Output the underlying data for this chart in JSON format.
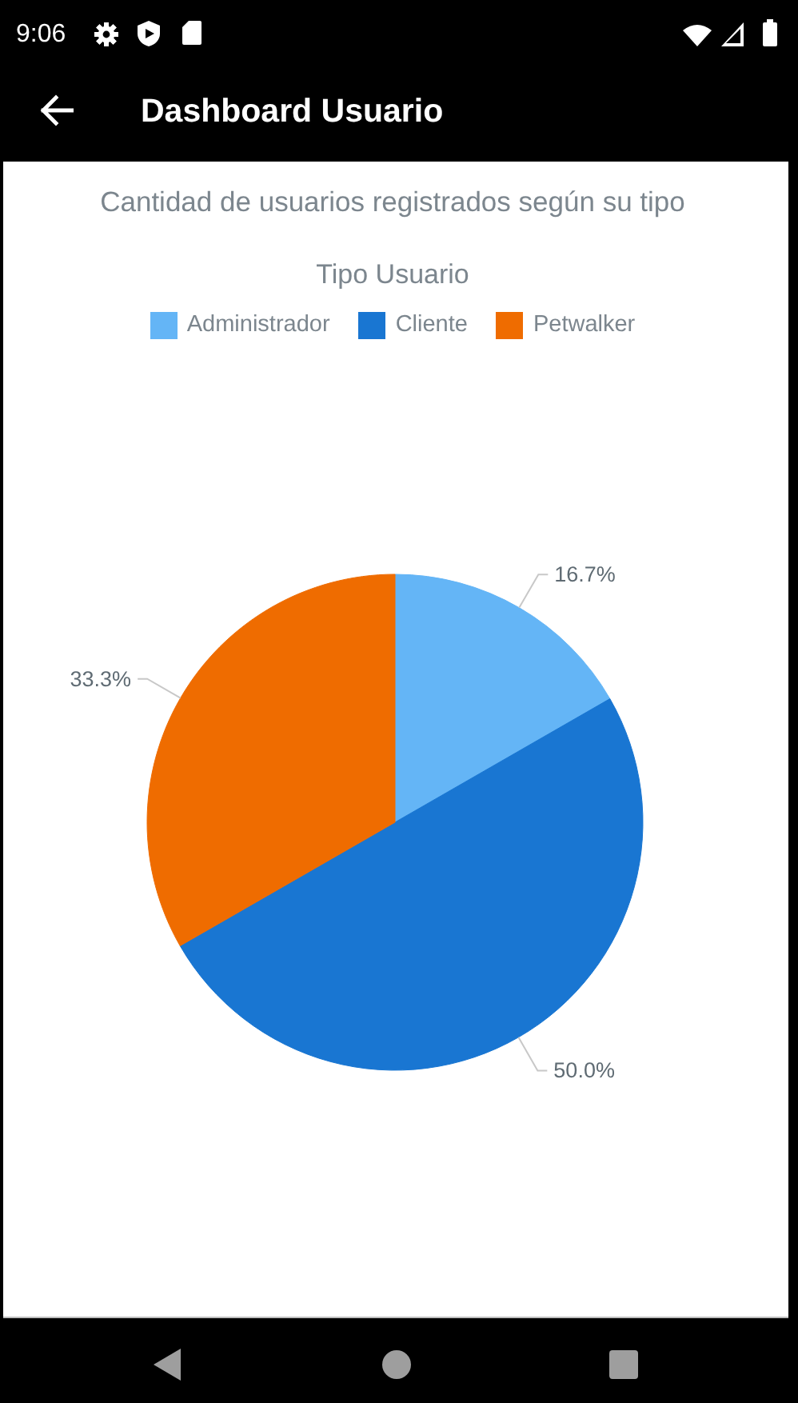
{
  "chart_data": {
    "type": "pie",
    "title": "Cantidad de usuarios registrados según su tipo",
    "legend_title": "Tipo Usuario",
    "categories": [
      "Administrador",
      "Cliente",
      "Petwalker"
    ],
    "values": [
      16.7,
      50.0,
      33.3
    ],
    "colors": [
      "#64b5f6",
      "#1976d2",
      "#ef6c00"
    ],
    "value_labels": [
      "16.7%",
      "50.0%",
      "33.3%"
    ],
    "legend": "top",
    "annotations": [
      "9:06",
      "Dashboard Usuario"
    ]
  }
}
